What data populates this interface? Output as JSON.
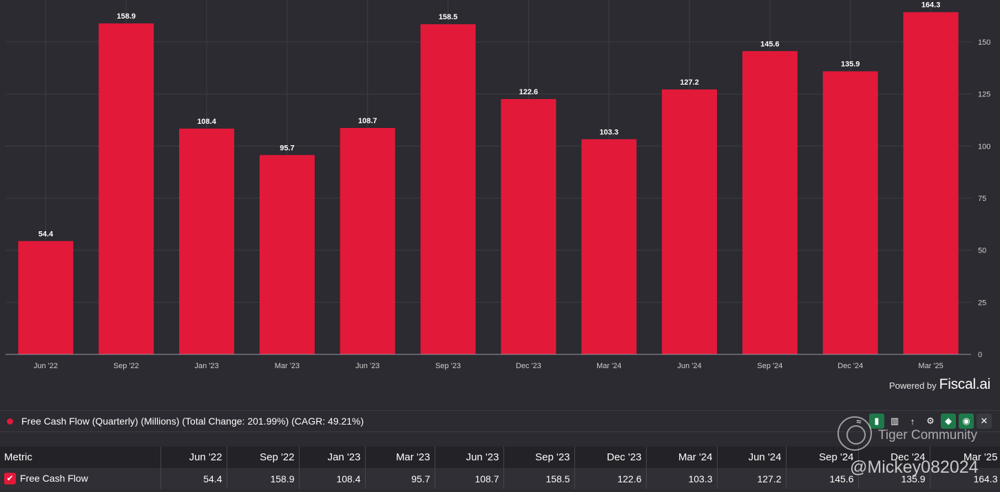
{
  "chart_data": {
    "type": "bar",
    "categories": [
      "Jun '22",
      "Sep '22",
      "Jan '23",
      "Mar '23",
      "Jun '23",
      "Sep '23",
      "Dec '23",
      "Mar '24",
      "Jun '24",
      "Sep '24",
      "Dec '24",
      "Mar '25"
    ],
    "values": [
      54.4,
      158.9,
      108.4,
      95.7,
      108.7,
      158.5,
      122.6,
      103.3,
      127.2,
      145.6,
      135.9,
      164.3
    ],
    "value_labels": [
      "54.4",
      "158.9",
      "108.4",
      "95.7",
      "108.7",
      "158.5",
      "122.6",
      "103.3",
      "127.2",
      "145.6",
      "135.9",
      "164.3"
    ],
    "yticks": [
      0,
      25,
      50,
      75,
      100,
      125,
      150
    ],
    "ylim": [
      0,
      166
    ],
    "grid": true,
    "y_axis_side": "right",
    "series_name": "Free Cash Flow",
    "bar_color": "#e3193a"
  },
  "powered_by": {
    "label": "Powered by",
    "brand": "Fiscal.ai"
  },
  "legend": {
    "text": "Free Cash Flow (Quarterly) (Millions) (Total Change: 201.99%) (CAGR: 49.21%)",
    "color": "#e3193a"
  },
  "toolbar": {
    "icons": [
      "compare-icon",
      "bar-chart-icon",
      "grouped-bar-icon",
      "sort-icon",
      "gear-icon",
      "tag-icon",
      "eye-icon",
      "close-icon"
    ]
  },
  "table": {
    "header_metric": "Metric",
    "columns": [
      "Jun '22",
      "Sep '22",
      "Jan '23",
      "Mar '23",
      "Jun '23",
      "Sep '23",
      "Dec '23",
      "Mar '24",
      "Jun '24",
      "Sep '24",
      "Dec '24",
      "Mar '25"
    ],
    "row": {
      "metric": "Free Cash Flow",
      "values": [
        "54.4",
        "158.9",
        "108.4",
        "95.7",
        "108.7",
        "158.5",
        "122.6",
        "103.3",
        "127.2",
        "145.6",
        "135.9",
        "164.3"
      ]
    }
  },
  "watermark": {
    "community": "Tiger Community",
    "handle": "@Mickey082024"
  }
}
